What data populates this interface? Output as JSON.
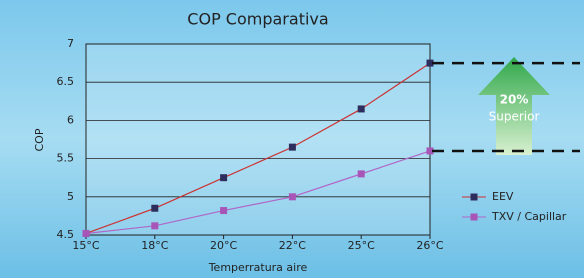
{
  "chart_data": {
    "type": "line",
    "title": "COP Comparativa",
    "x_label": "Temperratura aire",
    "y_label": "COP",
    "categories": [
      "15°C",
      "18°C",
      "20°C",
      "22°C",
      "25°C",
      "26°C"
    ],
    "series": [
      {
        "name": "EEV",
        "color": "#cc3333",
        "marker_color": "#2e2e5e",
        "values": [
          4.52,
          4.85,
          5.25,
          5.65,
          6.15,
          6.75
        ]
      },
      {
        "name": "TXV / Capillar",
        "color": "#b066c8",
        "marker_color": "#a855b8",
        "values": [
          4.52,
          4.62,
          4.82,
          5.0,
          5.3,
          5.6
        ]
      }
    ],
    "ylim": [
      4.5,
      7
    ],
    "yticks": [
      4.5,
      5,
      5.5,
      6,
      6.5,
      7
    ],
    "grid": true,
    "annotations": [
      "20%",
      "Superior"
    ]
  }
}
